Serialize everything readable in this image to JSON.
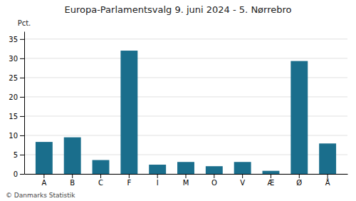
{
  "chart_data": {
    "type": "bar",
    "title": "Europa-Parlamentsvalg 9. juni 2024 - 5. Nørrebro",
    "categories": [
      "A",
      "B",
      "C",
      "F",
      "I",
      "M",
      "O",
      "V",
      "Æ",
      "Ø",
      "Å"
    ],
    "values": [
      8.3,
      9.5,
      3.6,
      32.0,
      2.4,
      3.1,
      2.0,
      3.1,
      0.8,
      29.3,
      7.9
    ],
    "color": "#1a6e8c",
    "ylabel": "Pct.",
    "ylim": [
      0,
      37
    ],
    "yticks": [
      0,
      5,
      10,
      15,
      20,
      25,
      30,
      35
    ],
    "grid": true,
    "footer": "© Danmarks Statistik"
  }
}
